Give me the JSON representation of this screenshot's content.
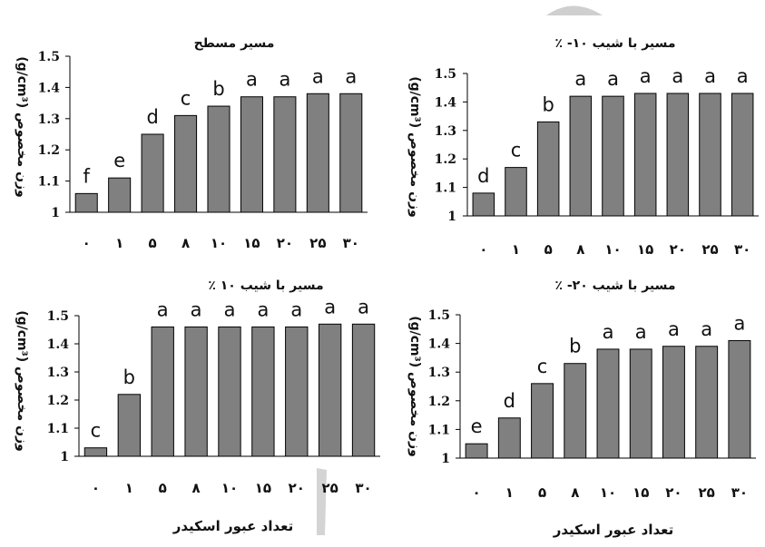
{
  "colors": {
    "bar": "#808080",
    "bar_outline": "#000000",
    "text": "#111111",
    "decor": "#c8c8c8"
  },
  "chart_data": [
    {
      "type": "bar",
      "title": "مسیر مسطح",
      "ylabel": "وزن مخصوص (g/cm³)",
      "xlabel": "",
      "ylim": [
        1,
        1.5
      ],
      "yticks": [
        "1",
        "1.1",
        "1.2",
        "1.3",
        "1.4",
        "1.5"
      ],
      "categories": [
        "0",
        "1",
        "5",
        "8",
        "10",
        "15",
        "20",
        "25",
        "30"
      ],
      "category_labels": [
        "٠",
        "١",
        "۵",
        "٨",
        "١٠",
        "١۵",
        "٢٠",
        "٢۵",
        "٣٠"
      ],
      "values": [
        1.06,
        1.11,
        1.25,
        1.31,
        1.34,
        1.37,
        1.37,
        1.38,
        1.38
      ],
      "group_labels": [
        "f",
        "e",
        "d",
        "c",
        "b",
        "a",
        "a",
        "a",
        "a"
      ]
    },
    {
      "type": "bar",
      "title": "مسیر با شیب ۱۰- ٪",
      "ylabel": "وزن مخصوص (g/cm³)",
      "xlabel": "",
      "ylim": [
        1,
        1.5
      ],
      "yticks": [
        "1",
        "1.1",
        "1.2",
        "1.3",
        "1.4",
        "1.5"
      ],
      "categories": [
        "0",
        "1",
        "5",
        "8",
        "10",
        "15",
        "20",
        "25",
        "30"
      ],
      "category_labels": [
        "٠",
        "١",
        "۵",
        "٨",
        "١٠",
        "١۵",
        "٢٠",
        "٢۵",
        "٣٠"
      ],
      "values": [
        1.08,
        1.17,
        1.33,
        1.42,
        1.42,
        1.43,
        1.43,
        1.43,
        1.43
      ],
      "group_labels": [
        "d",
        "c",
        "b",
        "a",
        "a",
        "a",
        "a",
        "a",
        "a"
      ]
    },
    {
      "type": "bar",
      "title": "مسیر با شیب ۱۰ ٪",
      "ylabel": "وزن مخصوص (g/cm³)",
      "xlabel": "تعداد عبور اسکیدر",
      "ylim": [
        1,
        1.5
      ],
      "yticks": [
        "1",
        "1.1",
        "1.2",
        "1.3",
        "1.4",
        "1.5"
      ],
      "categories": [
        "0",
        "1",
        "5",
        "8",
        "10",
        "15",
        "20",
        "25",
        "30"
      ],
      "category_labels": [
        "٠",
        "١",
        "۵",
        "٨",
        "١٠",
        "١۵",
        "٢٠",
        "٢۵",
        "٣٠"
      ],
      "values": [
        1.03,
        1.22,
        1.46,
        1.46,
        1.46,
        1.46,
        1.46,
        1.47,
        1.47
      ],
      "group_labels": [
        "c",
        "b",
        "a",
        "a",
        "a",
        "a",
        "a",
        "a",
        "a"
      ]
    },
    {
      "type": "bar",
      "title": "مسیر با شیب ۲۰- ٪",
      "ylabel": "وزن مخصوص (g/cm³)",
      "xlabel": "تعداد عبور اسکیدر",
      "ylim": [
        1,
        1.5
      ],
      "yticks": [
        "1",
        "1.1",
        "1.2",
        "1.3",
        "1.4",
        "1.5"
      ],
      "categories": [
        "0",
        "1",
        "5",
        "8",
        "10",
        "15",
        "20",
        "25",
        "30"
      ],
      "category_labels": [
        "٠",
        "١",
        "۵",
        "٨",
        "١٠",
        "١۵",
        "٢٠",
        "٢۵",
        "٣٠"
      ],
      "values": [
        1.05,
        1.14,
        1.26,
        1.33,
        1.38,
        1.38,
        1.39,
        1.39,
        1.41
      ],
      "group_labels": [
        "e",
        "d",
        "c",
        "b",
        "a",
        "a",
        "a",
        "a",
        "a"
      ]
    }
  ]
}
